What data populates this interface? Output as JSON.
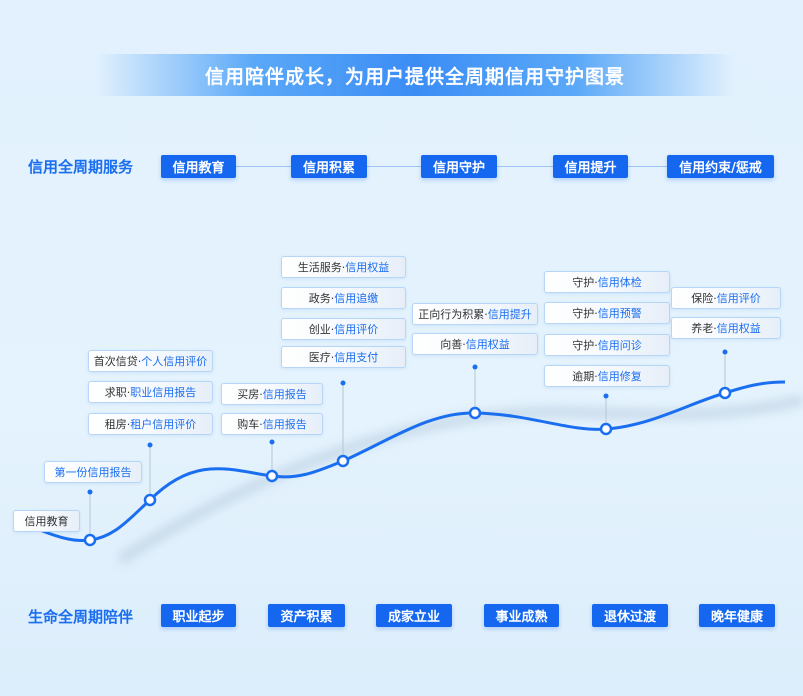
{
  "title": "信用陪伴成长，为用户提供全周期信用守护图景",
  "service_row": {
    "label": "信用全周期服务",
    "items": [
      "信用教育",
      "信用积累",
      "信用守护",
      "信用提升",
      "信用约束/惩戒"
    ]
  },
  "life_row": {
    "label": "生命全周期陪伴",
    "items": [
      "职业起步",
      "资产积累",
      "成家立业",
      "事业成熟",
      "退休过渡",
      "晚年健康"
    ]
  },
  "colors": {
    "accent": "#1467ee",
    "curve": "#1a6ef0",
    "background": "#e2f1fd"
  },
  "milestones": [
    {
      "cards": [
        {
          "prefix": "信用教育",
          "highlight": ""
        }
      ]
    },
    {
      "cards": [
        {
          "prefix": "",
          "highlight": "第一份信用报告"
        }
      ]
    },
    {
      "cards": [
        {
          "prefix": "首次信贷·",
          "highlight": "个人信用评价"
        },
        {
          "prefix": "求职·",
          "highlight": "职业信用报告"
        },
        {
          "prefix": "租房·",
          "highlight": "租户信用评价"
        }
      ]
    },
    {
      "cards": [
        {
          "prefix": "买房·",
          "highlight": "信用报告"
        },
        {
          "prefix": "购车·",
          "highlight": "信用报告"
        }
      ]
    },
    {
      "cards": [
        {
          "prefix": "生活服务·",
          "highlight": "信用权益"
        },
        {
          "prefix": "政务·",
          "highlight": "信用追缴"
        },
        {
          "prefix": "创业·",
          "highlight": "信用评价"
        },
        {
          "prefix": "医疗·",
          "highlight": "信用支付"
        }
      ]
    },
    {
      "cards": [
        {
          "prefix": "正向行为积累·",
          "highlight": "信用提升"
        },
        {
          "prefix": "向善·",
          "highlight": "信用权益"
        }
      ]
    },
    {
      "cards": [
        {
          "prefix": "守护·",
          "highlight": "信用体检"
        },
        {
          "prefix": "守护·",
          "highlight": "信用预警"
        },
        {
          "prefix": "守护·",
          "highlight": "信用问诊"
        },
        {
          "prefix": "逾期·",
          "highlight": "信用修复"
        }
      ]
    },
    {
      "cards": [
        {
          "prefix": "保险·",
          "highlight": "信用评价"
        },
        {
          "prefix": "养老·",
          "highlight": "信用权益"
        }
      ]
    }
  ]
}
